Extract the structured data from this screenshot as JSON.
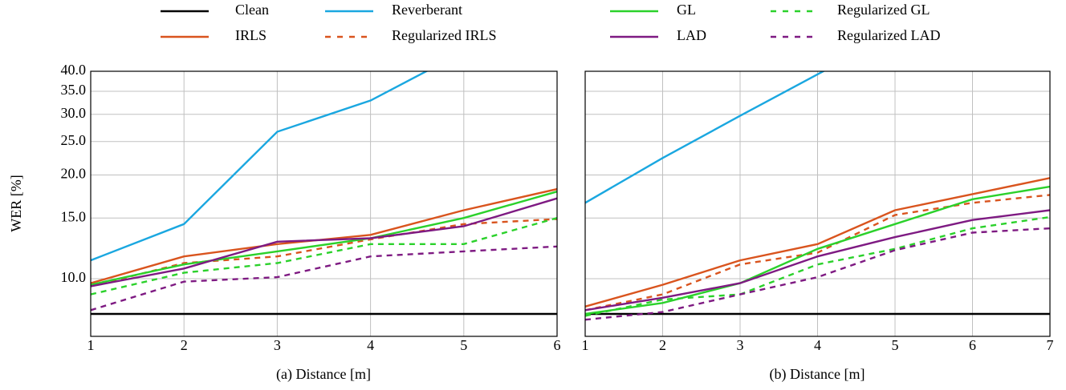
{
  "chart_data": [
    {
      "type": "line",
      "xlabel": "(a) Distance [m]",
      "ylabel": "WER [%]",
      "log_y": true,
      "grid": true,
      "x": [
        1,
        2,
        3,
        4,
        5,
        6
      ],
      "xlim": [
        1,
        6
      ],
      "xticks": [
        1,
        2,
        3,
        4,
        5,
        6
      ],
      "ylim": [
        6.8,
        40
      ],
      "yticks": [
        {
          "value": 10,
          "label": "10.0"
        },
        {
          "value": 15,
          "label": "15.0"
        },
        {
          "value": 20,
          "label": "20.0"
        },
        {
          "value": 25,
          "label": "25.0"
        },
        {
          "value": 30,
          "label": "30.0"
        },
        {
          "value": 35,
          "label": "35.0"
        },
        {
          "value": 40,
          "label": "40.0"
        }
      ],
      "series": [
        {
          "name": "Clean",
          "color": "#000000",
          "dash": false,
          "values": [
            7.9,
            7.9,
            7.9,
            7.9,
            7.9,
            7.9
          ]
        },
        {
          "name": "Reverberant",
          "color": "#1aa7e0",
          "dash": false,
          "values": [
            11.3,
            14.4,
            26.7,
            32.9,
            45.6,
            null
          ]
        },
        {
          "name": "IRLS",
          "color": "#d9541e",
          "dash": false,
          "values": [
            9.7,
            11.6,
            12.6,
            13.4,
            15.8,
            18.2
          ]
        },
        {
          "name": "Regularized IRLS",
          "color": "#d9541e",
          "dash": true,
          "values": [
            9.5,
            11.1,
            11.6,
            13.0,
            14.4,
            14.9
          ]
        },
        {
          "name": "GL",
          "color": "#2bd12b",
          "dash": false,
          "values": [
            9.6,
            11.0,
            12.0,
            13.1,
            15.0,
            17.9
          ]
        },
        {
          "name": "Regularized GL",
          "color": "#2bd12b",
          "dash": true,
          "values": [
            9.0,
            10.4,
            11.1,
            12.6,
            12.6,
            15.0
          ]
        },
        {
          "name": "LAD",
          "color": "#7e1a82",
          "dash": false,
          "values": [
            9.5,
            10.7,
            12.8,
            13.1,
            14.2,
            17.1
          ]
        },
        {
          "name": "Regularized LAD",
          "color": "#7e1a82",
          "dash": true,
          "values": [
            8.1,
            9.8,
            10.1,
            11.6,
            12.0,
            12.4
          ]
        }
      ]
    },
    {
      "type": "line",
      "xlabel": "(b) Distance [m]",
      "log_y": true,
      "grid": true,
      "x": [
        1,
        2,
        3,
        4,
        5,
        6,
        7
      ],
      "xlim": [
        1,
        7
      ],
      "xticks": [
        1,
        2,
        3,
        4,
        5,
        6,
        7
      ],
      "ylim": [
        6.8,
        40
      ],
      "series": [
        {
          "color": "#000000",
          "dash": false,
          "values": [
            7.9,
            7.9,
            7.9,
            7.9,
            7.9,
            7.9,
            7.9
          ]
        },
        {
          "color": "#1aa7e0",
          "dash": false,
          "values": [
            16.6,
            22.4,
            29.7,
            39.2,
            51.6,
            null,
            null
          ]
        },
        {
          "color": "#d9541e",
          "dash": false,
          "values": [
            8.3,
            9.6,
            11.3,
            12.6,
            15.8,
            17.6,
            19.6
          ]
        },
        {
          "color": "#d9541e",
          "dash": true,
          "values": [
            8.1,
            9.0,
            11.0,
            11.9,
            15.3,
            16.6,
            17.5
          ]
        },
        {
          "color": "#2bd12b",
          "dash": false,
          "values": [
            7.9,
            8.5,
            9.7,
            12.2,
            14.4,
            17.0,
            18.5
          ]
        },
        {
          "color": "#2bd12b",
          "dash": true,
          "values": [
            7.8,
            8.7,
            9.0,
            11.0,
            12.2,
            14.0,
            15.1
          ]
        },
        {
          "color": "#7e1a82",
          "dash": false,
          "values": [
            8.1,
            8.8,
            9.7,
            11.6,
            13.2,
            14.8,
            15.8
          ]
        },
        {
          "color": "#7e1a82",
          "dash": true,
          "values": [
            7.6,
            8.0,
            9.0,
            10.1,
            12.1,
            13.6,
            14.0
          ]
        }
      ]
    }
  ]
}
